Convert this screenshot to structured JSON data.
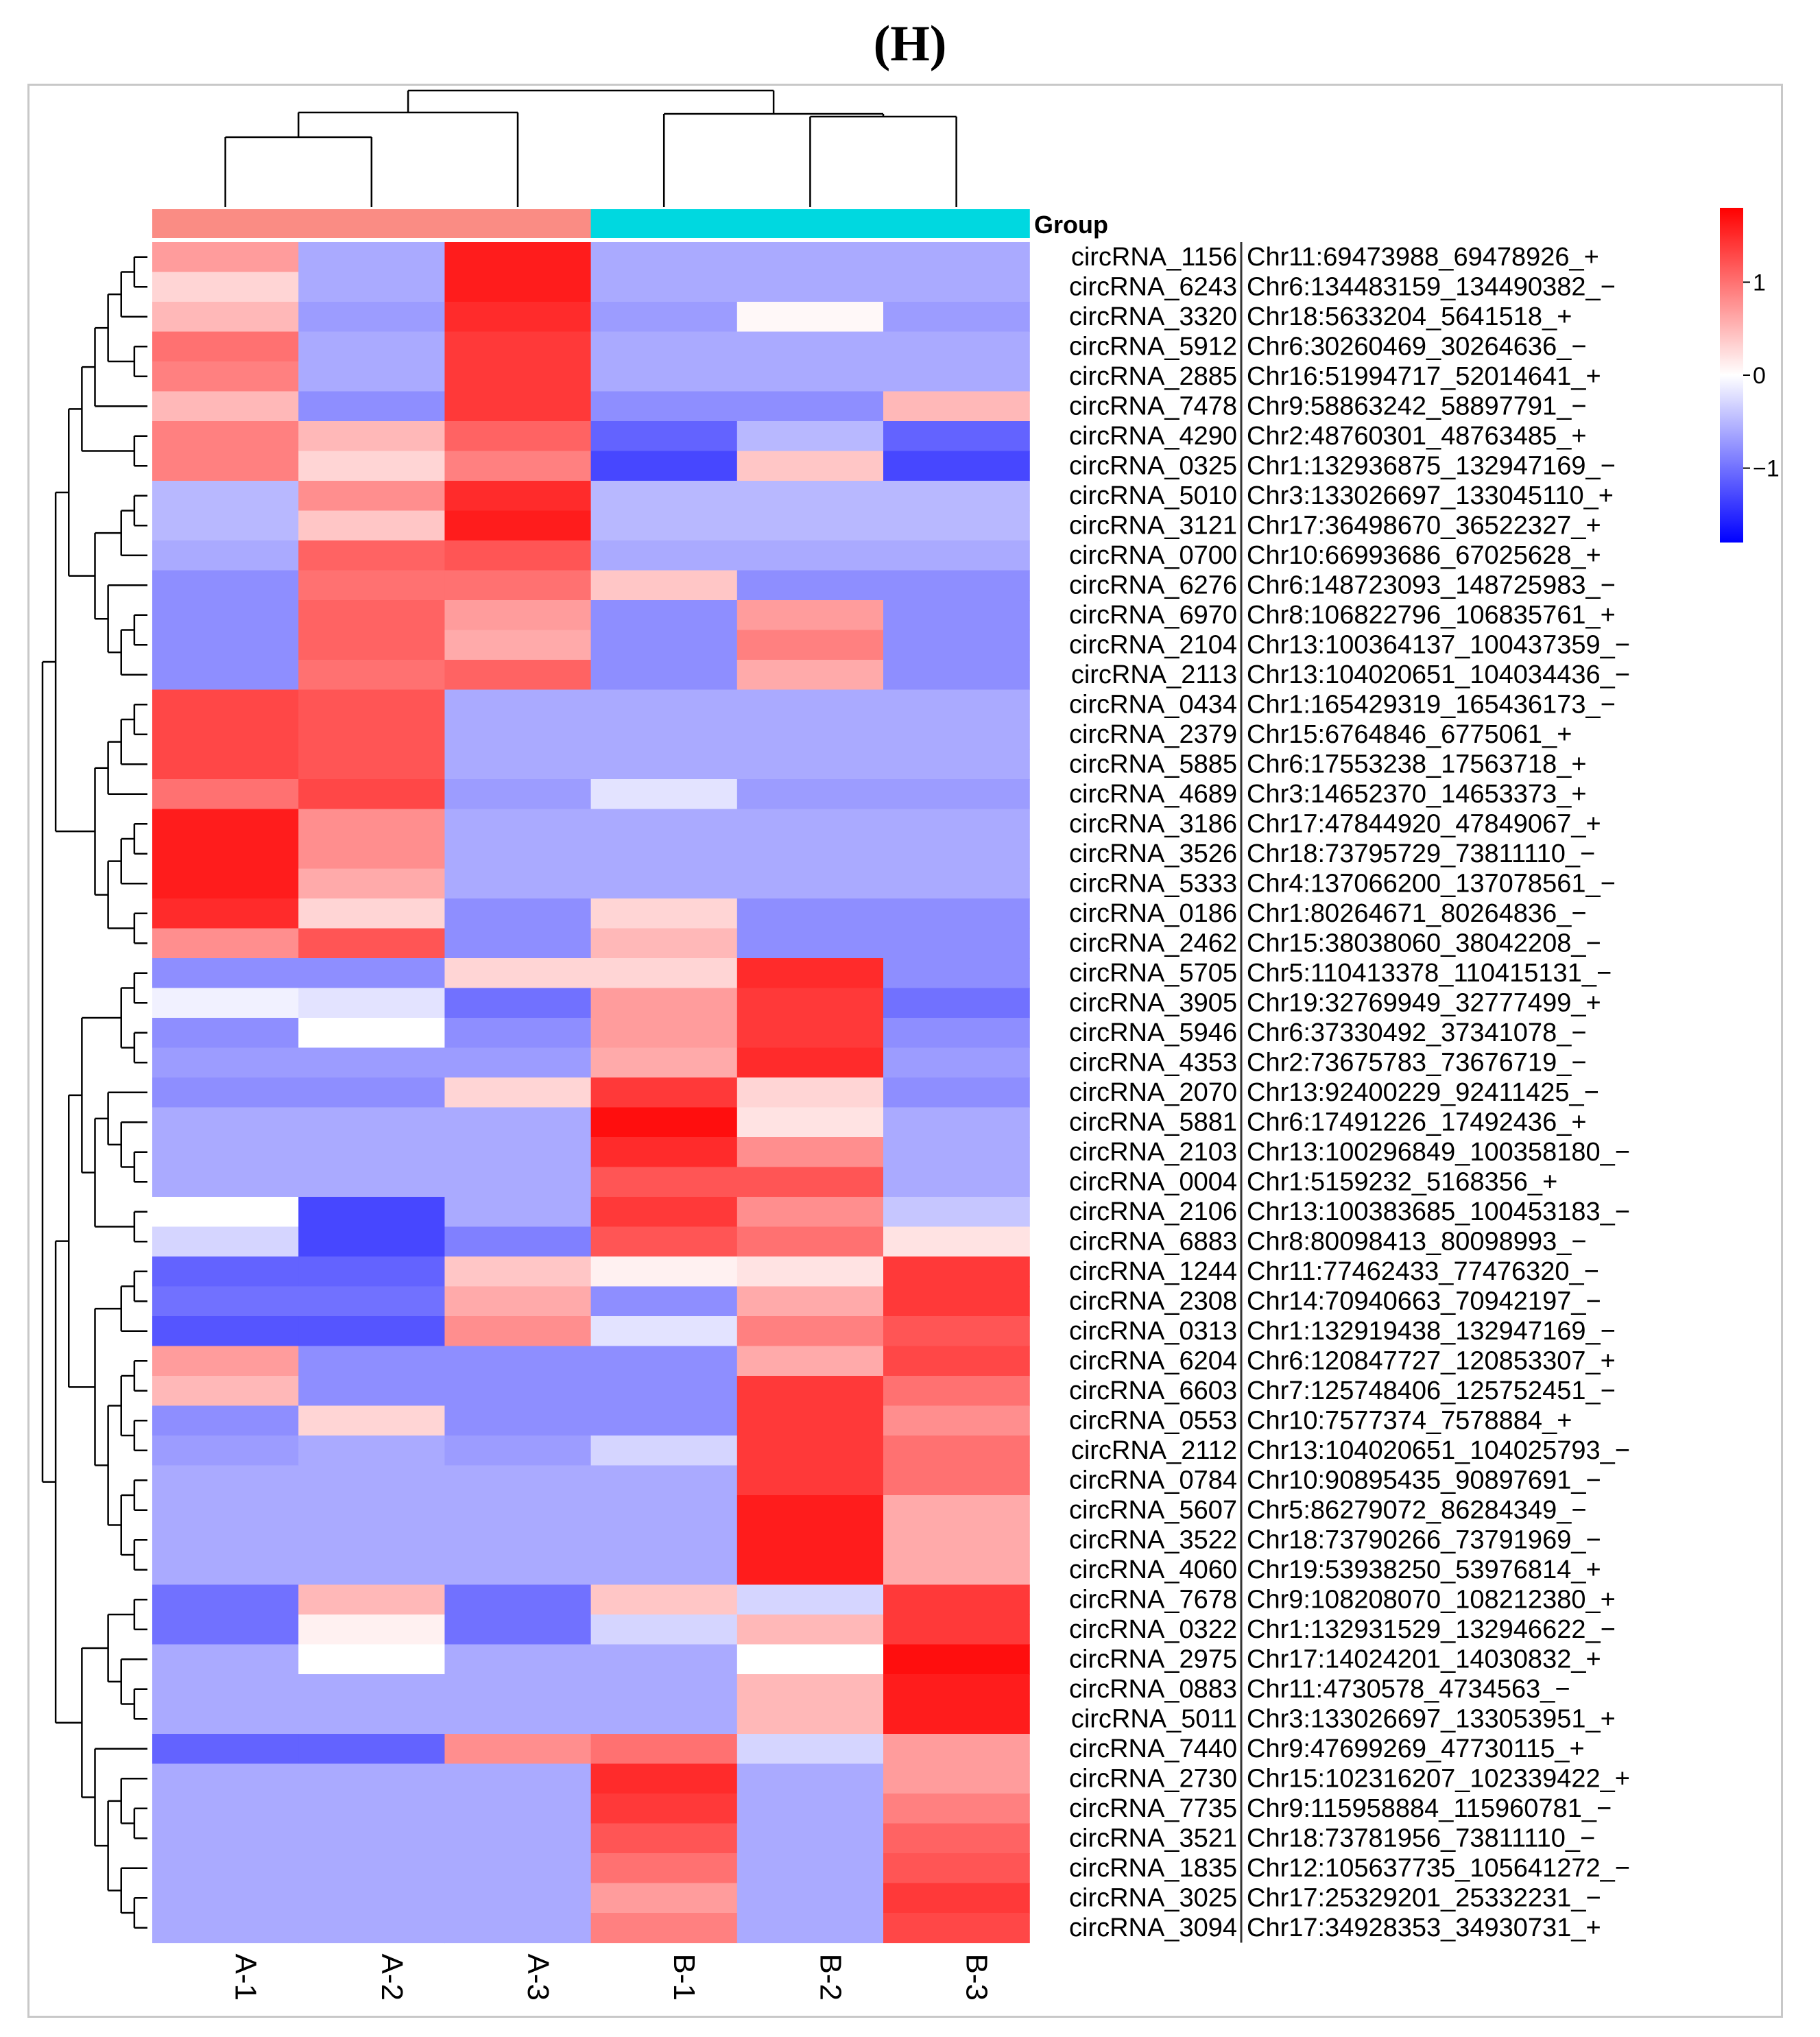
{
  "panel_title": "(H)",
  "chart_data": {
    "type": "heatmap",
    "group_annotation": {
      "label": "Group",
      "groups": [
        {
          "name": "A",
          "color": "#fa8c84",
          "columns": [
            "A-1",
            "A-2",
            "A-3"
          ]
        },
        {
          "name": "B",
          "color": "#00d8e0",
          "columns": [
            "B-1",
            "B-2",
            "B-3"
          ]
        }
      ]
    },
    "columns": [
      "A-1",
      "A-2",
      "A-3",
      "B-1",
      "B-2",
      "B-3"
    ],
    "rows": [
      {
        "id": "circRNA_1156",
        "locus": "Chr11:69473988_69478926_+",
        "values": [
          0.7,
          -0.6,
          1.6,
          -0.6,
          -0.6,
          -0.6
        ]
      },
      {
        "id": "circRNA_6243",
        "locus": "Chr6:134483159_134490382_−",
        "values": [
          0.3,
          -0.6,
          1.6,
          -0.6,
          -0.6,
          -0.6
        ]
      },
      {
        "id": "circRNA_3320",
        "locus": "Chr18:5633204_5641518_+",
        "values": [
          0.5,
          -0.7,
          1.5,
          -0.7,
          0.05,
          -0.7
        ]
      },
      {
        "id": "circRNA_5912",
        "locus": "Chr6:30260469_30264636_−",
        "values": [
          1.0,
          -0.6,
          1.4,
          -0.6,
          -0.6,
          -0.6
        ]
      },
      {
        "id": "circRNA_2885",
        "locus": "Chr16:51994717_52014641_+",
        "values": [
          0.9,
          -0.6,
          1.4,
          -0.6,
          -0.6,
          -0.6
        ]
      },
      {
        "id": "circRNA_7478",
        "locus": "Chr9:58863242_58897791_−",
        "values": [
          0.5,
          -0.8,
          1.4,
          -0.8,
          -0.8,
          0.5
        ]
      },
      {
        "id": "circRNA_4290",
        "locus": "Chr2:48760301_48763485_+",
        "values": [
          0.9,
          0.5,
          1.1,
          -1.1,
          -0.5,
          -1.1
        ]
      },
      {
        "id": "circRNA_0325",
        "locus": "Chr1:132936875_132947169_−",
        "values": [
          0.9,
          0.3,
          0.9,
          -1.3,
          0.4,
          -1.3
        ]
      },
      {
        "id": "circRNA_5010",
        "locus": "Chr3:133026697_133045110_+",
        "values": [
          -0.5,
          0.8,
          1.5,
          -0.5,
          -0.5,
          -0.5
        ]
      },
      {
        "id": "circRNA_3121",
        "locus": "Chr17:36498670_36522327_+",
        "values": [
          -0.5,
          0.4,
          1.6,
          -0.5,
          -0.5,
          -0.5
        ]
      },
      {
        "id": "circRNA_0700",
        "locus": "Chr10:66993686_67025628_+",
        "values": [
          -0.6,
          1.1,
          1.2,
          -0.6,
          -0.6,
          -0.6
        ]
      },
      {
        "id": "circRNA_6276",
        "locus": "Chr6:148723093_148725983_−",
        "values": [
          -0.8,
          1.0,
          1.0,
          0.4,
          -0.8,
          -0.8
        ]
      },
      {
        "id": "circRNA_6970",
        "locus": "Chr8:106822796_106835761_+",
        "values": [
          -0.8,
          1.1,
          0.7,
          -0.8,
          0.7,
          -0.8
        ]
      },
      {
        "id": "circRNA_2104",
        "locus": "Chr13:100364137_100437359_−",
        "values": [
          -0.8,
          1.1,
          0.6,
          -0.8,
          0.9,
          -0.8
        ]
      },
      {
        "id": "circRNA_2113",
        "locus": "Chr13:104020651_104034436_−",
        "values": [
          -0.8,
          1.0,
          1.1,
          -0.8,
          0.6,
          -0.8
        ]
      },
      {
        "id": "circRNA_0434",
        "locus": "Chr1:165429319_165436173_−",
        "values": [
          1.3,
          1.2,
          -0.6,
          -0.6,
          -0.6,
          -0.6
        ]
      },
      {
        "id": "circRNA_2379",
        "locus": "Chr15:6764846_6775061_+",
        "values": [
          1.3,
          1.2,
          -0.6,
          -0.6,
          -0.6,
          -0.6
        ]
      },
      {
        "id": "circRNA_5885",
        "locus": "Chr6:17553238_17563718_+",
        "values": [
          1.3,
          1.2,
          -0.6,
          -0.6,
          -0.6,
          -0.6
        ]
      },
      {
        "id": "circRNA_4689",
        "locus": "Chr3:14652370_14653373_+",
        "values": [
          1.0,
          1.3,
          -0.7,
          -0.2,
          -0.7,
          -0.7
        ]
      },
      {
        "id": "circRNA_3186",
        "locus": "Chr17:47844920_47849067_+",
        "values": [
          1.6,
          0.8,
          -0.6,
          -0.6,
          -0.6,
          -0.6
        ]
      },
      {
        "id": "circRNA_3526",
        "locus": "Chr18:73795729_73811110_−",
        "values": [
          1.6,
          0.8,
          -0.6,
          -0.6,
          -0.6,
          -0.6
        ]
      },
      {
        "id": "circRNA_5333",
        "locus": "Chr4:137066200_137078561_−",
        "values": [
          1.6,
          0.6,
          -0.6,
          -0.6,
          -0.6,
          -0.6
        ]
      },
      {
        "id": "circRNA_0186",
        "locus": "Chr1:80264671_80264836_−",
        "values": [
          1.5,
          0.3,
          -0.8,
          0.3,
          -0.8,
          -0.8
        ]
      },
      {
        "id": "circRNA_2462",
        "locus": "Chr15:38038060_38042208_−",
        "values": [
          0.8,
          1.2,
          -0.8,
          0.5,
          -0.8,
          -0.8
        ]
      },
      {
        "id": "circRNA_5705",
        "locus": "Chr5:110413378_110415131_−",
        "values": [
          -0.8,
          -0.8,
          0.3,
          0.3,
          1.5,
          -0.8
        ]
      },
      {
        "id": "circRNA_3905",
        "locus": "Chr19:32769949_32777499_+",
        "values": [
          -0.1,
          -0.2,
          -1.0,
          0.7,
          1.4,
          -1.0
        ]
      },
      {
        "id": "circRNA_5946",
        "locus": "Chr6:37330492_37341078_−",
        "values": [
          -0.8,
          0.0,
          -0.8,
          0.7,
          1.4,
          -0.8
        ]
      },
      {
        "id": "circRNA_4353",
        "locus": "Chr2:73675783_73676719_−",
        "values": [
          -0.7,
          -0.7,
          -0.7,
          0.6,
          1.5,
          -0.7
        ]
      },
      {
        "id": "circRNA_2070",
        "locus": "Chr13:92400229_92411425_−",
        "values": [
          -0.8,
          -0.8,
          0.3,
          1.4,
          0.3,
          -0.8
        ]
      },
      {
        "id": "circRNA_5881",
        "locus": "Chr6:17491226_17492436_+",
        "values": [
          -0.6,
          -0.6,
          -0.6,
          1.7,
          0.2,
          -0.6
        ]
      },
      {
        "id": "circRNA_2103",
        "locus": "Chr13:100296849_100358180_−",
        "values": [
          -0.6,
          -0.6,
          -0.6,
          1.5,
          0.8,
          -0.6
        ]
      },
      {
        "id": "circRNA_0004",
        "locus": "Chr1:5159232_5168356_+",
        "values": [
          -0.6,
          -0.6,
          -0.6,
          1.2,
          1.2,
          -0.6
        ]
      },
      {
        "id": "circRNA_2106",
        "locus": "Chr13:100383685_100453183_−",
        "values": [
          0.0,
          -1.3,
          -0.6,
          1.4,
          0.8,
          -0.4
        ]
      },
      {
        "id": "circRNA_6883",
        "locus": "Chr8:80098413_80098993_−",
        "values": [
          -0.3,
          -1.3,
          -0.9,
          1.2,
          1.0,
          0.2
        ]
      },
      {
        "id": "circRNA_1244",
        "locus": "Chr11:77462433_77476320_−",
        "values": [
          -1.1,
          -1.1,
          0.4,
          0.1,
          0.2,
          1.4
        ]
      },
      {
        "id": "circRNA_2308",
        "locus": "Chr14:70940663_70942197_−",
        "values": [
          -1.0,
          -1.0,
          0.6,
          -0.8,
          0.6,
          1.4
        ]
      },
      {
        "id": "circRNA_0313",
        "locus": "Chr1:132919438_132947169_−",
        "values": [
          -1.2,
          -1.2,
          0.8,
          -0.2,
          0.9,
          1.2
        ]
      },
      {
        "id": "circRNA_6204",
        "locus": "Chr6:120847727_120853307_+",
        "values": [
          0.7,
          -0.8,
          -0.8,
          -0.8,
          0.6,
          1.3
        ]
      },
      {
        "id": "circRNA_6603",
        "locus": "Chr7:125748406_125752451_−",
        "values": [
          0.5,
          -0.8,
          -0.8,
          -0.8,
          1.4,
          1.0
        ]
      },
      {
        "id": "circRNA_0553",
        "locus": "Chr10:7577374_7578884_+",
        "values": [
          -0.8,
          0.3,
          -0.8,
          -0.8,
          1.4,
          0.8
        ]
      },
      {
        "id": "circRNA_2112",
        "locus": "Chr13:104020651_104025793_−",
        "values": [
          -0.7,
          -0.6,
          -0.7,
          -0.3,
          1.4,
          1.0
        ]
      },
      {
        "id": "circRNA_0784",
        "locus": "Chr10:90895435_90897691_−",
        "values": [
          -0.6,
          -0.6,
          -0.6,
          -0.6,
          1.4,
          1.0
        ]
      },
      {
        "id": "circRNA_5607",
        "locus": "Chr5:86279072_86284349_−",
        "values": [
          -0.6,
          -0.6,
          -0.6,
          -0.6,
          1.6,
          0.6
        ]
      },
      {
        "id": "circRNA_3522",
        "locus": "Chr18:73790266_73791969_−",
        "values": [
          -0.6,
          -0.6,
          -0.6,
          -0.6,
          1.6,
          0.6
        ]
      },
      {
        "id": "circRNA_4060",
        "locus": "Chr19:53938250_53976814_+",
        "values": [
          -0.6,
          -0.6,
          -0.6,
          -0.6,
          1.6,
          0.6
        ]
      },
      {
        "id": "circRNA_7678",
        "locus": "Chr9:108208070_108212380_+",
        "values": [
          -1.0,
          0.5,
          -1.0,
          0.4,
          -0.3,
          1.4
        ]
      },
      {
        "id": "circRNA_0322",
        "locus": "Chr1:132931529_132946622_−",
        "values": [
          -1.0,
          0.1,
          -1.0,
          -0.3,
          0.5,
          1.4
        ]
      },
      {
        "id": "circRNA_2975",
        "locus": "Chr17:14024201_14030832_+",
        "values": [
          -0.6,
          0.0,
          -0.6,
          -0.6,
          0.0,
          1.7
        ]
      },
      {
        "id": "circRNA_0883",
        "locus": "Chr11:4730578_4734563_−",
        "values": [
          -0.6,
          -0.6,
          -0.6,
          -0.6,
          0.5,
          1.6
        ]
      },
      {
        "id": "circRNA_5011",
        "locus": "Chr3:133026697_133053951_+",
        "values": [
          -0.6,
          -0.6,
          -0.6,
          -0.6,
          0.5,
          1.6
        ]
      },
      {
        "id": "circRNA_7440",
        "locus": "Chr9:47699269_47730115_+",
        "values": [
          -1.1,
          -1.1,
          0.8,
          1.0,
          -0.3,
          0.7
        ]
      },
      {
        "id": "circRNA_2730",
        "locus": "Chr15:102316207_102339422_+",
        "values": [
          -0.6,
          -0.6,
          -0.6,
          1.5,
          -0.6,
          0.7
        ]
      },
      {
        "id": "circRNA_7735",
        "locus": "Chr9:115958884_115960781_−",
        "values": [
          -0.6,
          -0.6,
          -0.6,
          1.4,
          -0.6,
          0.9
        ]
      },
      {
        "id": "circRNA_3521",
        "locus": "Chr18:73781956_73811110_−",
        "values": [
          -0.6,
          -0.6,
          -0.6,
          1.2,
          -0.6,
          1.1
        ]
      },
      {
        "id": "circRNA_1835",
        "locus": "Chr12:105637735_105641272_−",
        "values": [
          -0.6,
          -0.6,
          -0.6,
          1.0,
          -0.6,
          1.2
        ]
      },
      {
        "id": "circRNA_3025",
        "locus": "Chr17:25329201_25332231_−",
        "values": [
          -0.6,
          -0.6,
          -0.6,
          0.7,
          -0.6,
          1.4
        ]
      },
      {
        "id": "circRNA_3094",
        "locus": "Chr17:34928353_34930731_+",
        "values": [
          -0.6,
          -0.6,
          -0.6,
          0.9,
          -0.6,
          1.3
        ]
      }
    ],
    "color_scale": {
      "low": "#0000ff",
      "mid": "#ffffff",
      "high": "#ff0000",
      "range": [
        -1.8,
        1.8
      ],
      "ticks": [
        1,
        0,
        -1
      ],
      "tick_labels": [
        "1",
        "0",
        "−1"
      ]
    },
    "column_dendrogram": true,
    "row_dendrogram": true
  }
}
